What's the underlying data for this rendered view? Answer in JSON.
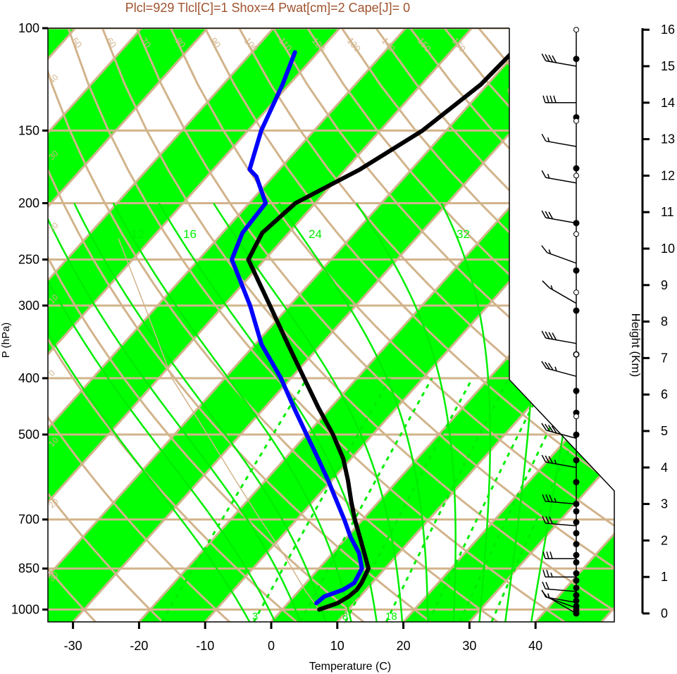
{
  "colors": {
    "band": "#00ff00",
    "tan": "#d2b48c",
    "brown": "#a0522d",
    "temperature": "#000000",
    "dewpoint": "#0000ff",
    "mixing": "#00ee00"
  },
  "chart_data": {
    "type": "line",
    "title": "Plcl=929 Tlcl[C]=1 Shox=4 Pwat[cm]=2 Cape[J]= 0",
    "xlabel": "Temperature (C)",
    "ylabel": "P (hPa)",
    "y2label": "Height (Km)",
    "xlim": [
      -33,
      40
    ],
    "ylim": [
      1050,
      100
    ],
    "x_ticks": [
      "-30",
      "-20",
      "-10",
      "0",
      "10",
      "20",
      "30",
      "40"
    ],
    "p_ticks": [
      "100",
      "150",
      "200",
      "250",
      "300",
      "400",
      "500",
      "700",
      "850",
      "1000"
    ],
    "height_ticks": [
      "0",
      "1",
      "2",
      "3",
      "4",
      "5",
      "6",
      "7",
      "8",
      "9",
      "10",
      "11",
      "12",
      "13",
      "14",
      "15",
      "16"
    ],
    "isotherm_labels": [
      "40",
      "30",
      "20",
      "10",
      "0",
      "10",
      "20",
      "30"
    ],
    "isotherm_label_temps": [
      -40,
      -30,
      -20,
      -10,
      0,
      10,
      20,
      30
    ],
    "dry_adiabat_labels": [
      "50",
      "60",
      "70",
      "80",
      "90",
      "100",
      "110",
      "120",
      "130",
      "140",
      "150",
      "160"
    ],
    "dry_adiabat_theta_c": [
      50,
      60,
      70,
      80,
      90,
      100,
      110,
      120,
      130,
      140,
      150,
      160
    ],
    "moist_adiabat_labels": [
      "12",
      "16",
      "24",
      "32"
    ],
    "moist_adiabat_thetae_c": [
      12,
      16,
      24,
      32
    ],
    "mixing_ratio_labels": [
      "3",
      "8",
      "18"
    ],
    "mixing_ratio_gkg": [
      1,
      3,
      5,
      8,
      12,
      18,
      24,
      32
    ],
    "series": [
      {
        "name": "Temperature",
        "p": [
          1000,
          975,
          950,
          925,
          900,
          850,
          800,
          750,
          700,
          650,
          600,
          550,
          500,
          450,
          400,
          350,
          300,
          250,
          225,
          200,
          175,
          150,
          125,
          110
        ],
        "t": [
          5.6,
          7.5,
          8.3,
          8.6,
          8.4,
          7.5,
          4.8,
          1.9,
          -1.2,
          -4.3,
          -7.5,
          -11.2,
          -16.0,
          -21.8,
          -28.0,
          -35.0,
          -43.0,
          -52.5,
          -54.0,
          -53.0,
          -47.8,
          -43.6,
          -41.0,
          -40.6
        ]
      },
      {
        "name": "Dewpoint",
        "p": [
          975,
          950,
          925,
          900,
          850,
          800,
          750,
          700,
          650,
          600,
          550,
          500,
          450,
          400,
          350,
          300,
          250,
          225,
          200,
          180,
          175,
          150,
          125,
          110
        ],
        "t": [
          4.3,
          4.6,
          6.5,
          7.3,
          6.5,
          4.0,
          0.5,
          -2.8,
          -6.5,
          -10.5,
          -15.0,
          -20.0,
          -25.5,
          -31.5,
          -39.0,
          -46.0,
          -55.0,
          -57.0,
          -57.5,
          -62.5,
          -64.5,
          -68.0,
          -71.0,
          -73.5
        ]
      }
    ],
    "wind_barbs": [
      {
        "h_km": 0.0,
        "speed_kt": 5,
        "dir_deg": 300
      },
      {
        "h_km": 0.15,
        "speed_kt": 10,
        "dir_deg": 290
      },
      {
        "h_km": 0.3,
        "speed_kt": 15,
        "dir_deg": 280
      },
      {
        "h_km": 0.6,
        "speed_kt": 20,
        "dir_deg": 275
      },
      {
        "h_km": 1.0,
        "speed_kt": 25,
        "dir_deg": 270
      },
      {
        "h_km": 1.5,
        "speed_kt": 30,
        "dir_deg": 270
      },
      {
        "h_km": 2.4,
        "speed_kt": 30,
        "dir_deg": 275
      },
      {
        "h_km": 3.0,
        "speed_kt": 35,
        "dir_deg": 275
      },
      {
        "h_km": 4.0,
        "speed_kt": 35,
        "dir_deg": 280
      },
      {
        "h_km": 4.8,
        "speed_kt": 40,
        "dir_deg": 285
      },
      {
        "h_km": 6.5,
        "speed_kt": 35,
        "dir_deg": 285
      },
      {
        "h_km": 7.4,
        "speed_kt": 40,
        "dir_deg": 280
      },
      {
        "h_km": 8.5,
        "speed_kt": 15,
        "dir_deg": 300
      },
      {
        "h_km": 9.6,
        "speed_kt": 15,
        "dir_deg": 290
      },
      {
        "h_km": 10.7,
        "speed_kt": 30,
        "dir_deg": 280
      },
      {
        "h_km": 11.8,
        "speed_kt": 15,
        "dir_deg": 280
      },
      {
        "h_km": 12.8,
        "speed_kt": 15,
        "dir_deg": 280
      },
      {
        "h_km": 14.0,
        "speed_kt": 40,
        "dir_deg": 270
      },
      {
        "h_km": 15.0,
        "speed_kt": 40,
        "dir_deg": 280
      }
    ],
    "height_dots_km": [
      0.0,
      0.1,
      0.2,
      0.35,
      0.5,
      0.7,
      0.9,
      1.1,
      1.4,
      1.6,
      1.9,
      2.2,
      2.5,
      2.8,
      3.0,
      3.6,
      4.2,
      4.9,
      5.5,
      6.1,
      7.1,
      8.3,
      9.4,
      10.7,
      12.2,
      13.6,
      15.2
    ],
    "height_open_km": [
      5.4,
      7.1,
      8.8,
      10.4,
      12.0,
      13.5,
      16.0
    ]
  }
}
